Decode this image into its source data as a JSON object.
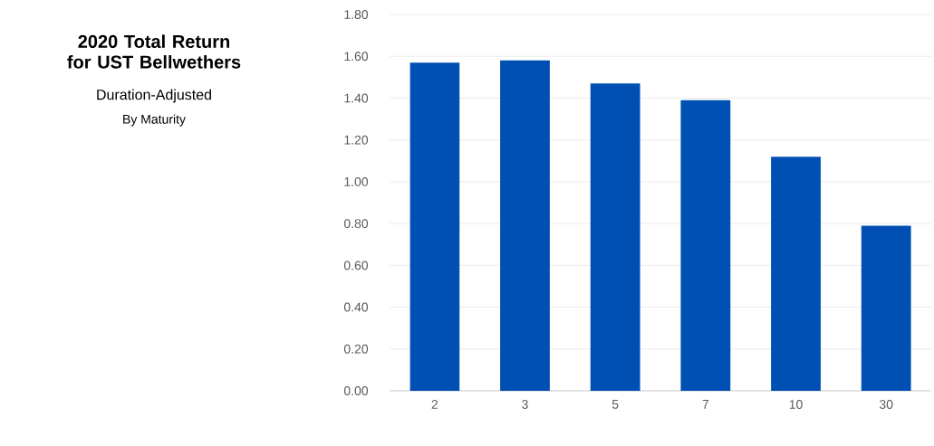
{
  "chart_data": {
    "type": "bar",
    "title": "2020 Total Return for UST Bellwethers",
    "subtitle": "Duration-Adjusted",
    "annotations": [
      "By Maturity"
    ],
    "categories": [
      "2",
      "3",
      "5",
      "7",
      "10",
      "30"
    ],
    "values": [
      1.57,
      1.58,
      1.47,
      1.39,
      1.12,
      0.79
    ],
    "color": "#0050b4",
    "ylim": [
      0,
      1.8
    ],
    "yticks": [
      {
        "value": 0,
        "label": "0.00"
      },
      {
        "value": 0.2,
        "label": "0.20"
      },
      {
        "value": 0.4,
        "label": "0.40"
      },
      {
        "value": 0.6,
        "label": "0.60"
      },
      {
        "value": 0.8,
        "label": "0.80"
      },
      {
        "value": 1.0,
        "label": "1.00"
      },
      {
        "value": 1.2,
        "label": "1.20"
      },
      {
        "value": 1.4,
        "label": "1.40"
      },
      {
        "value": 1.6,
        "label": "1.60"
      },
      {
        "value": 1.8,
        "label": "1.80"
      }
    ],
    "grid": "y"
  }
}
